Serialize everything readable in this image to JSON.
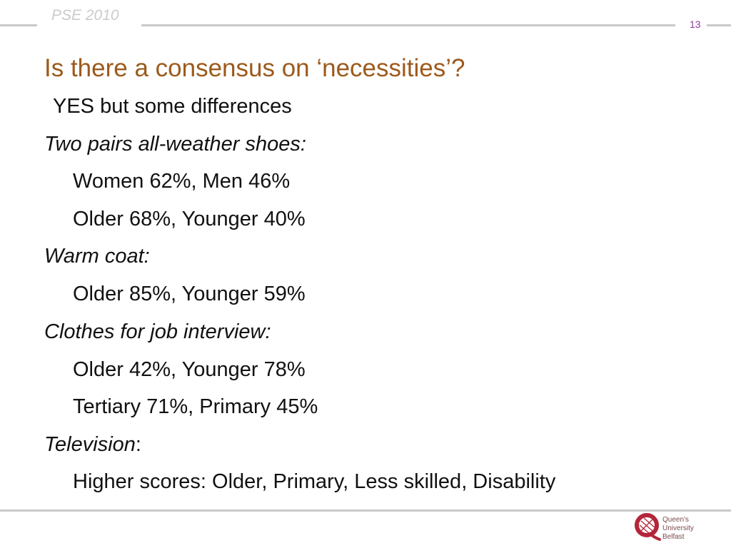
{
  "header": {
    "label": "PSE 2010",
    "slide_number": "13"
  },
  "title": "Is there a consensus on ‘necessities’?",
  "body": [
    {
      "text": "YES but some differences",
      "style": "normal"
    },
    {
      "text": "Two pairs all-weather shoes:",
      "style": "italic"
    },
    {
      "text": "Women 62%, Men 46%",
      "style": "normal"
    },
    {
      "text": "Older 68%, Younger 40%",
      "style": "normal"
    },
    {
      "text": "Warm coat:",
      "style": "italic"
    },
    {
      "text": "Older 85%, Younger 59%",
      "style": "normal"
    },
    {
      "text": "Clothes for job interview:",
      "style": "italic"
    },
    {
      "text": "Older 42%, Younger 78%",
      "style": "normal"
    },
    {
      "text": "Tertiary 71%, Primary 45%",
      "style": "normal"
    },
    {
      "text": "Television",
      "style": "italic"
    },
    {
      "text": "Higher scores: Older, Primary, Less skilled, Disability",
      "style": "normal"
    }
  ],
  "television_suffix": ":",
  "logo": {
    "line1": "Queen's University",
    "line2": "Belfast"
  },
  "colors": {
    "title": "#9c5a1c",
    "slide_number": "#8b3aa3",
    "rule": "#c9c9c9",
    "logo": "#b3263a"
  }
}
